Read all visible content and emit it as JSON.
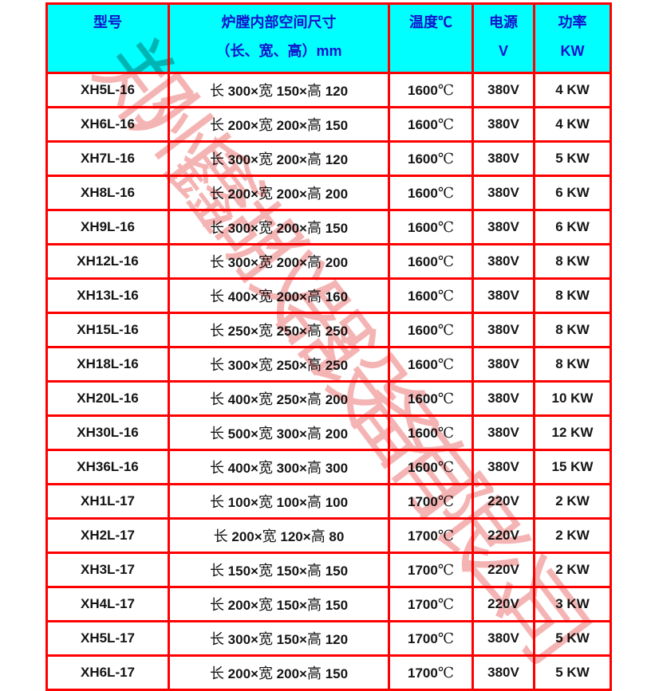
{
  "watermark": {
    "text": "郑州鑫湖仪器设备有限公司",
    "color": "#ee7e7e"
  },
  "colors": {
    "table_border": "#ff0000",
    "header_background": "#00ffff",
    "header_text": "#1111cc",
    "body_text": "#151515"
  },
  "table": {
    "columns": [
      "model",
      "dimensions",
      "temperature",
      "voltage",
      "power"
    ],
    "header": {
      "model": {
        "line1": "型号",
        "line2": ""
      },
      "dimensions": {
        "line1": "炉膛内部空间尺寸",
        "line2": "（长、宽、高）mm"
      },
      "temperature": {
        "line1": "温度℃",
        "line2": ""
      },
      "voltage": {
        "line1": "电源",
        "line2": "V"
      },
      "power": {
        "line1": "功率",
        "line2": "KW"
      }
    },
    "rows": [
      {
        "model": "XH5L-16",
        "dimensions": "长 300×宽 150×高 120",
        "temperature": "1600℃",
        "voltage": "380V",
        "power": "4 KW"
      },
      {
        "model": "XH6L-16",
        "dimensions": "长 200×宽 200×高 150",
        "temperature": "1600℃",
        "voltage": "380V",
        "power": "4 KW"
      },
      {
        "model": "XH7L-16",
        "dimensions": "长 300×宽 200×高 120",
        "temperature": "1600℃",
        "voltage": "380V",
        "power": "5 KW"
      },
      {
        "model": "XH8L-16",
        "dimensions": "长 200×宽 200×高 200",
        "temperature": "1600℃",
        "voltage": "380V",
        "power": "6 KW"
      },
      {
        "model": "XH9L-16",
        "dimensions": "长 300×宽 200×高 150",
        "temperature": "1600℃",
        "voltage": "380V",
        "power": "6 KW"
      },
      {
        "model": "XH12L-16",
        "dimensions": "长 300×宽 200×高 200",
        "temperature": "1600℃",
        "voltage": "380V",
        "power": "8 KW"
      },
      {
        "model": "XH13L-16",
        "dimensions": "长 400×宽 200×高 160",
        "temperature": "1600℃",
        "voltage": "380V",
        "power": "8 KW"
      },
      {
        "model": "XH15L-16",
        "dimensions": "长 250×宽 250×高 250",
        "temperature": "1600℃",
        "voltage": "380V",
        "power": "8 KW"
      },
      {
        "model": "XH18L-16",
        "dimensions": "长 300×宽 250×高 250",
        "temperature": "1600℃",
        "voltage": "380V",
        "power": "8 KW"
      },
      {
        "model": "XH20L-16",
        "dimensions": "长 400×宽 250×高 200",
        "temperature": "1600℃",
        "voltage": "380V",
        "power": "10 KW"
      },
      {
        "model": "XH30L-16",
        "dimensions": "长 500×宽 300×高 200",
        "temperature": "1600℃",
        "voltage": "380V",
        "power": "12 KW"
      },
      {
        "model": "XH36L-16",
        "dimensions": "长 400×宽 300×高 300",
        "temperature": "1600℃",
        "voltage": "380V",
        "power": "15 KW"
      },
      {
        "model": "XH1L-17",
        "dimensions": "长 100×宽 100×高 100",
        "temperature": "1700℃",
        "voltage": "220V",
        "power": "2 KW"
      },
      {
        "model": "XH2L-17",
        "dimensions": "长 200×宽 120×高 80",
        "temperature": "1700℃",
        "voltage": "220V",
        "power": "2 KW"
      },
      {
        "model": "XH3L-17",
        "dimensions": "长 150×宽 150×高 150",
        "temperature": "1700℃",
        "voltage": "220V",
        "power": "2 KW"
      },
      {
        "model": "XH4L-17",
        "dimensions": "长 200×宽 150×高 150",
        "temperature": "1700℃",
        "voltage": "220V",
        "power": "3 KW"
      },
      {
        "model": "XH5L-17",
        "dimensions": "长 300×宽 150×高 120",
        "temperature": "1700℃",
        "voltage": "380V",
        "power": "5 KW"
      },
      {
        "model": "XH6L-17",
        "dimensions": "长 200×宽 200×高 150",
        "temperature": "1700℃",
        "voltage": "380V",
        "power": "5 KW"
      }
    ]
  }
}
